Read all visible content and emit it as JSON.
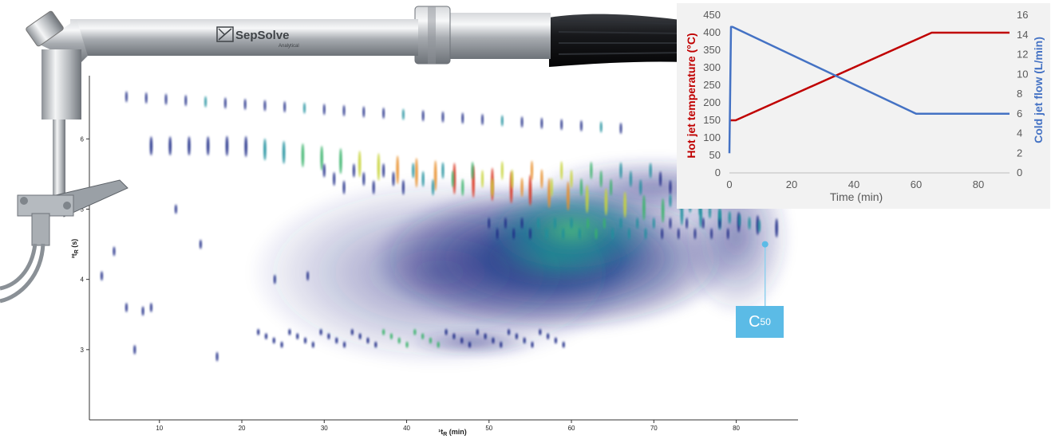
{
  "brand": {
    "name": "SepSolve",
    "subtitle": "Analytical"
  },
  "main_plot": {
    "xlabel": "¹t",
    "xlabel_sub": "R",
    "xlabel_unit": " (min)",
    "ylabel": "²t",
    "ylabel_sub": "R",
    "ylabel_unit": " (s)",
    "xticks": [
      10,
      20,
      30,
      40,
      50,
      60,
      70,
      80
    ],
    "yticks": [
      3,
      4,
      5,
      6
    ],
    "xlim": [
      1.5,
      87.5
    ],
    "ylim": [
      2.0,
      6.9
    ],
    "marker": {
      "label": "C",
      "label_sub": "50",
      "x": 83.5,
      "y": 4.5
    }
  },
  "chart_data": {
    "type": "line",
    "x_axis": {
      "label": "Time (min)",
      "range": [
        0,
        90
      ],
      "ticks": [
        0,
        20,
        40,
        60,
        80
      ]
    },
    "y_axis_left": {
      "label": "Hot jet temperature (°C)",
      "range": [
        0,
        450
      ],
      "ticks": [
        0,
        50,
        100,
        150,
        200,
        250,
        300,
        350,
        400,
        450
      ],
      "color": "#c00000"
    },
    "y_axis_right": {
      "label": "Cold jet flow (L/min)",
      "range": [
        0,
        16
      ],
      "ticks": [
        0,
        2,
        4,
        6,
        8,
        10,
        12,
        14,
        16
      ],
      "color": "#4472c4"
    },
    "series": [
      {
        "axis": "left",
        "color": "#c00000",
        "x": [
          0,
          2,
          65,
          90
        ],
        "y": [
          150,
          150,
          400,
          400
        ]
      },
      {
        "axis": "right",
        "color": "#4472c4",
        "x": [
          0,
          0.5,
          1,
          60,
          90
        ],
        "y": [
          2,
          14.8,
          14.8,
          6,
          6
        ]
      }
    ],
    "grid": false,
    "legend": "none"
  }
}
